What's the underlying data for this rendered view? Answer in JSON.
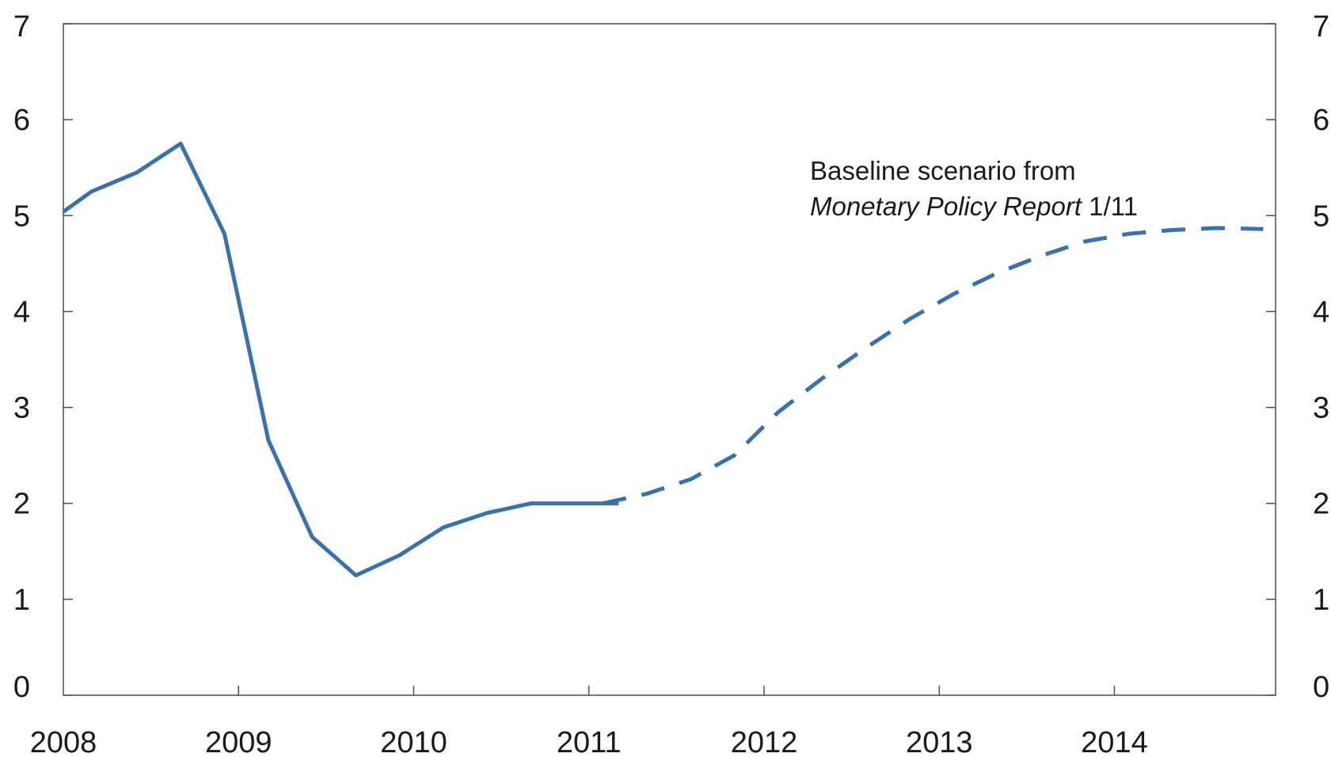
{
  "chart_data": {
    "type": "line",
    "title": "",
    "xlabel": "",
    "ylabel": "",
    "ylim": [
      0,
      7
    ],
    "yticks": [
      0,
      1,
      2,
      3,
      4,
      5,
      6,
      7
    ],
    "y_axis_sides": "left-and-right",
    "xlim": [
      2008.0,
      2014.92
    ],
    "xticks": [
      "2008",
      "2009",
      "2010",
      "2011",
      "2012",
      "2013",
      "2014"
    ],
    "grid": false,
    "series": [
      {
        "style": "solid",
        "color": "#3a72a8",
        "x": [
          2008.0,
          2008.16,
          2008.42,
          2008.67,
          2008.92,
          2009.17,
          2009.42,
          2009.67,
          2009.92,
          2010.17,
          2010.42,
          2010.67,
          2010.92,
          2011.17
        ],
        "y": [
          5.04,
          5.25,
          5.45,
          5.75,
          4.81,
          2.66,
          1.65,
          1.25,
          1.46,
          1.75,
          1.9,
          2.0,
          2.0,
          2.0
        ]
      },
      {
        "style": "dashed",
        "color": "#3a72a8",
        "x": [
          2011.08,
          2011.33,
          2011.58,
          2011.83,
          2012.08,
          2012.33,
          2012.58,
          2012.83,
          2013.08,
          2013.33,
          2013.58,
          2013.83,
          2014.08,
          2014.33,
          2014.58,
          2014.85
        ],
        "y": [
          2.0,
          2.1,
          2.25,
          2.5,
          2.95,
          3.3,
          3.62,
          3.92,
          4.18,
          4.4,
          4.58,
          4.73,
          4.81,
          4.85,
          4.87,
          4.86
        ]
      }
    ],
    "annotation": {
      "line1": "Baseline scenario from",
      "line2_italic": "Monetary Policy Report",
      "line2_rest": " 1/11"
    }
  }
}
